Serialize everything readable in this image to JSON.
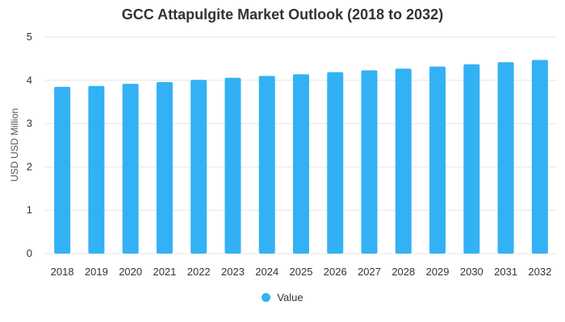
{
  "chart_data": {
    "type": "bar",
    "title": "GCC Attapulgite Market Outlook (2018 to 2032)",
    "ylabel": "USD USD Million",
    "xlabel": "",
    "categories": [
      "2018",
      "2019",
      "2020",
      "2021",
      "2022",
      "2023",
      "2024",
      "2025",
      "2026",
      "2027",
      "2028",
      "2029",
      "2030",
      "2031",
      "2032"
    ],
    "series": [
      {
        "name": "Value",
        "values": [
          3.85,
          3.87,
          3.92,
          3.96,
          4.01,
          4.06,
          4.1,
          4.14,
          4.19,
          4.23,
          4.27,
          4.32,
          4.37,
          4.42,
          4.47
        ]
      }
    ],
    "ylim": [
      0,
      5
    ],
    "yticks": [
      "0",
      "1",
      "2",
      "3",
      "4",
      "5"
    ],
    "grid": true,
    "legend": "bottom-center",
    "colors": {
      "bar": "#33b1f5",
      "grid": "#e6e6e6",
      "text": "#333333"
    }
  }
}
